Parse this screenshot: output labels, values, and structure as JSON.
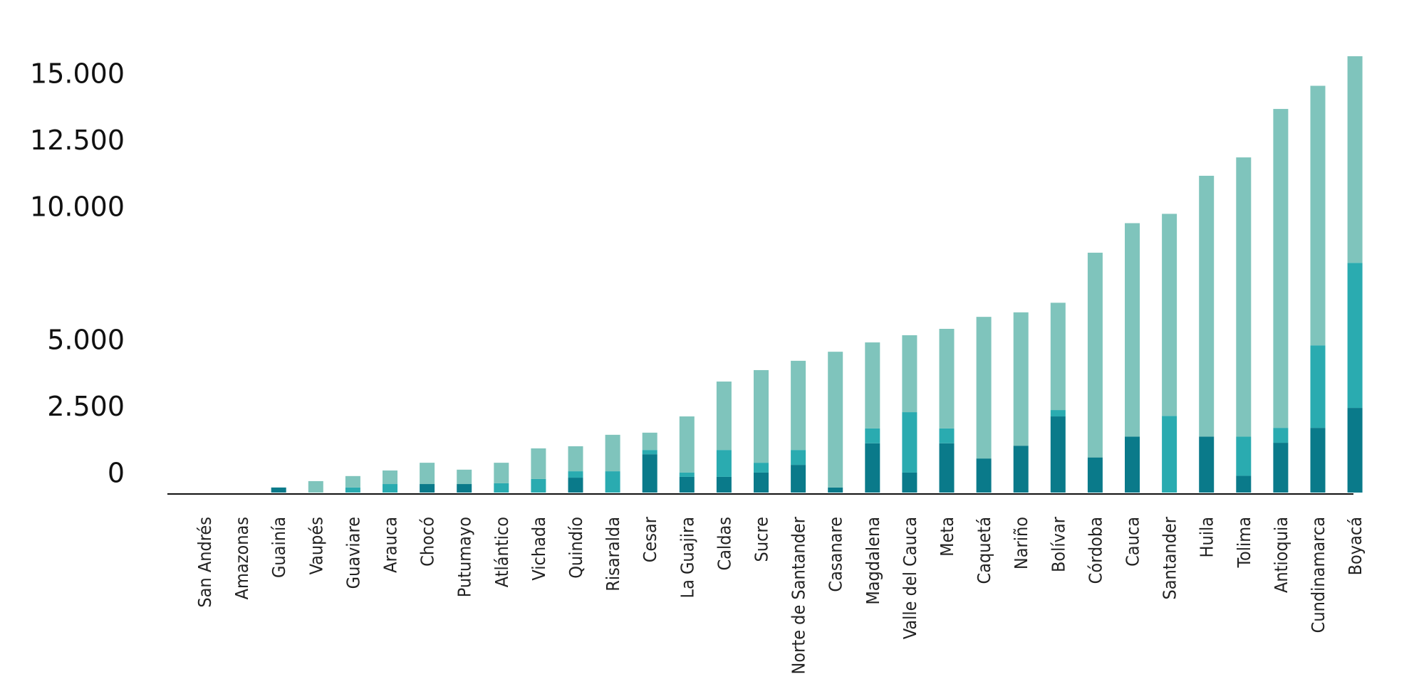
{
  "chart_data": {
    "type": "bar",
    "stacked": true,
    "title": "",
    "xlabel": "",
    "ylabel": "",
    "ylim": [
      0,
      17000
    ],
    "grid": false,
    "legend": "none",
    "y_ticks": [
      0,
      2500,
      5000,
      10000,
      12500,
      15000
    ],
    "y_tick_labels": [
      "0",
      "2.500",
      "5.000",
      "10.000",
      "12.500",
      "15.000"
    ],
    "categories": [
      "San Andrés",
      "Amazonas",
      "Guainía",
      "Vaupés",
      "Guaviare",
      "Arauca",
      "Chocó",
      "Putumayo",
      "Atlántico",
      "Vichada",
      "Quindío",
      "Risaralda",
      "Cesar",
      "La Guajira",
      "Caldas",
      "Sucre",
      "Norte de Santander",
      "Casanare",
      "Magdalena",
      "Valle del Cauca",
      "Meta",
      "Caquetá",
      "Nariño",
      "Bolívar",
      "Córdoba",
      "Cauca",
      "Santander",
      "Huila",
      "Tolima",
      "Antioquia",
      "Cundinamarca",
      "Boyacá"
    ],
    "series": [
      {
        "color": "#0a7a8a",
        "values": [
          0,
          0,
          190,
          0,
          0,
          0,
          320,
          320,
          0,
          0,
          560,
          0,
          1440,
          590,
          590,
          750,
          1040,
          190,
          1850,
          750,
          1850,
          1280,
          1760,
          2860,
          1320,
          2100,
          0,
          2100,
          630,
          1870,
          2430,
          3180
        ]
      },
      {
        "color": "#2aabb0",
        "values": [
          0,
          0,
          0,
          0,
          190,
          320,
          0,
          0,
          350,
          510,
          240,
          800,
          160,
          160,
          1010,
          370,
          560,
          0,
          560,
          2270,
          560,
          0,
          0,
          240,
          0,
          0,
          2880,
          0,
          1470,
          560,
          3100,
          5450
        ]
      },
      {
        "color": "#7fc4bc",
        "values": [
          0,
          0,
          0,
          430,
          430,
          510,
          800,
          540,
          770,
          1150,
          940,
          1370,
          650,
          2110,
          2570,
          3480,
          3350,
          5100,
          3230,
          2890,
          3740,
          5320,
          5010,
          4030,
          7690,
          8020,
          7590,
          9800,
          10490,
          11980,
          9750,
          7760
        ]
      }
    ]
  }
}
